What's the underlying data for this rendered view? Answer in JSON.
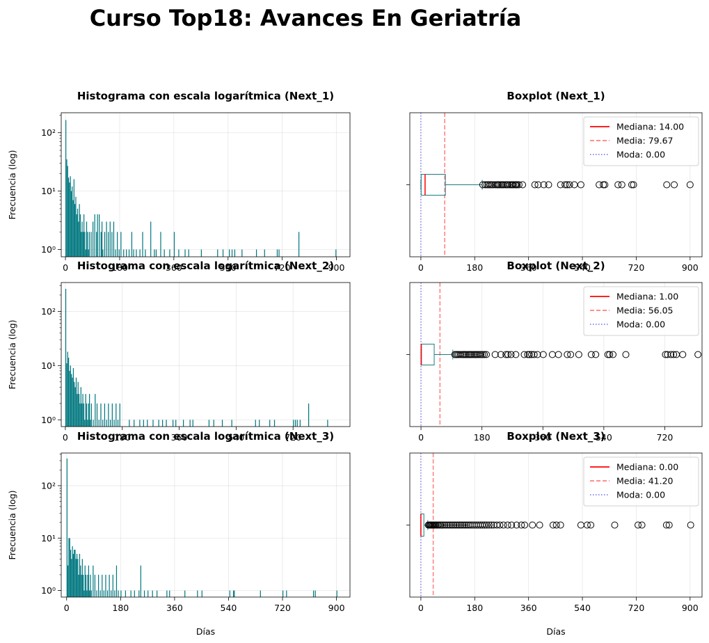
{
  "figure": {
    "title": "Curso Top18: Avances En Geriatría"
  },
  "chart_data": [
    {
      "type": "bar",
      "title": "Histograma con escala logarítmica (Next_1)",
      "xlabel": "",
      "ylabel": "Frecuencia (log)",
      "xlim": [
        -14,
        945
      ],
      "yscale": "log",
      "ylim": [
        0.75,
        220
      ],
      "x_ticks": [
        0,
        180,
        360,
        540,
        720,
        900
      ],
      "y_ticks": [
        {
          "value": 1,
          "label": "10⁰"
        },
        {
          "value": 10,
          "label": "10¹"
        },
        {
          "value": 100,
          "label": "10²"
        }
      ],
      "grid": true,
      "color": "#00777f",
      "bar_width": 2.8,
      "bins": [
        [
          0,
          165
        ],
        [
          3,
          35
        ],
        [
          6,
          27
        ],
        [
          9,
          17
        ],
        [
          12,
          14
        ],
        [
          15,
          18
        ],
        [
          18,
          10
        ],
        [
          21,
          12
        ],
        [
          24,
          7
        ],
        [
          27,
          16
        ],
        [
          30,
          6
        ],
        [
          33,
          8
        ],
        [
          36,
          4
        ],
        [
          39,
          5
        ],
        [
          42,
          3
        ],
        [
          45,
          6
        ],
        [
          48,
          4
        ],
        [
          51,
          2
        ],
        [
          54,
          3
        ],
        [
          57,
          2
        ],
        [
          60,
          4
        ],
        [
          63,
          2
        ],
        [
          66,
          1
        ],
        [
          69,
          3
        ],
        [
          72,
          2
        ],
        [
          75,
          1
        ],
        [
          78,
          2
        ],
        [
          84,
          2
        ],
        [
          90,
          3
        ],
        [
          96,
          4
        ],
        [
          102,
          2
        ],
        [
          105,
          4
        ],
        [
          111,
          4
        ],
        [
          117,
          2
        ],
        [
          120,
          3
        ],
        [
          123,
          1
        ],
        [
          129,
          2
        ],
        [
          135,
          3
        ],
        [
          141,
          2
        ],
        [
          147,
          3
        ],
        [
          153,
          2
        ],
        [
          159,
          3
        ],
        [
          165,
          1
        ],
        [
          171,
          2
        ],
        [
          177,
          1
        ],
        [
          183,
          2
        ],
        [
          192,
          1
        ],
        [
          201,
          1
        ],
        [
          210,
          1
        ],
        [
          219,
          2
        ],
        [
          225,
          1
        ],
        [
          234,
          1
        ],
        [
          246,
          1
        ],
        [
          255,
          2
        ],
        [
          264,
          1
        ],
        [
          282,
          3
        ],
        [
          294,
          1
        ],
        [
          300,
          1
        ],
        [
          315,
          2
        ],
        [
          327,
          1
        ],
        [
          345,
          1
        ],
        [
          360,
          2
        ],
        [
          375,
          1
        ],
        [
          396,
          1
        ],
        [
          408,
          1
        ],
        [
          450,
          1
        ],
        [
          504,
          1
        ],
        [
          522,
          1
        ],
        [
          543,
          1
        ],
        [
          552,
          1
        ],
        [
          561,
          1
        ],
        [
          585,
          1
        ],
        [
          633,
          1
        ],
        [
          660,
          1
        ],
        [
          702,
          1
        ],
        [
          708,
          1
        ],
        [
          774,
          2
        ],
        [
          897,
          1
        ]
      ]
    },
    {
      "type": "boxplot",
      "title": "Boxplot (Next_1)",
      "xlabel": "",
      "xlim": [
        -37,
        940
      ],
      "x_ticks": [
        0,
        180,
        360,
        540,
        720,
        900
      ],
      "grid": true,
      "box": {
        "q1": 1,
        "median": 14,
        "q3": 82,
        "whisker_low": 0,
        "whisker_high": 205
      },
      "mean": 79.67,
      "mode": 0,
      "outliers": [
        207,
        215,
        221,
        226,
        231,
        236,
        241,
        248,
        254,
        258,
        262,
        268,
        272,
        276,
        282,
        287,
        291,
        297,
        302,
        306,
        309,
        315,
        318,
        322,
        328,
        340,
        381,
        392,
        411,
        427,
        467,
        482,
        489,
        497,
        513,
        535,
        596,
        610,
        615,
        659,
        672,
        705,
        711,
        822,
        847,
        900
      ],
      "legend": {
        "position": "upper-right",
        "entries": [
          {
            "label": "Mediana: 14.00",
            "color": "#ff0000",
            "style": "solid"
          },
          {
            "label": "Media: 79.67",
            "color": "#ff7f7f",
            "style": "dashed"
          },
          {
            "label": "Moda: 0.00",
            "color": "#7f7fef",
            "style": "dotted"
          }
        ]
      }
    },
    {
      "type": "bar",
      "title": "Histograma con escala logarítmica (Next_2)",
      "xlabel": "",
      "ylabel": "Frecuencia (log)",
      "xlim": [
        -13,
        900
      ],
      "yscale": "log",
      "ylim": [
        0.75,
        340
      ],
      "x_ticks": [
        0,
        180,
        360,
        540,
        720
      ],
      "y_ticks": [
        {
          "value": 1,
          "label": "10⁰"
        },
        {
          "value": 10,
          "label": "10¹"
        },
        {
          "value": 100,
          "label": "10²"
        }
      ],
      "grid": true,
      "color": "#00777f",
      "bar_width": 2.7,
      "bins": [
        [
          0,
          260
        ],
        [
          3,
          11
        ],
        [
          6,
          18
        ],
        [
          9,
          14
        ],
        [
          12,
          8
        ],
        [
          15,
          10
        ],
        [
          18,
          7
        ],
        [
          21,
          6
        ],
        [
          24,
          9
        ],
        [
          27,
          5
        ],
        [
          30,
          4
        ],
        [
          33,
          6
        ],
        [
          36,
          3
        ],
        [
          39,
          5
        ],
        [
          42,
          3
        ],
        [
          45,
          2
        ],
        [
          48,
          4
        ],
        [
          51,
          2
        ],
        [
          54,
          3
        ],
        [
          57,
          2
        ],
        [
          60,
          1
        ],
        [
          63,
          3
        ],
        [
          66,
          2
        ],
        [
          69,
          1
        ],
        [
          72,
          2
        ],
        [
          75,
          3
        ],
        [
          78,
          1
        ],
        [
          81,
          2
        ],
        [
          87,
          1
        ],
        [
          93,
          3
        ],
        [
          99,
          2
        ],
        [
          105,
          1
        ],
        [
          111,
          2
        ],
        [
          117,
          1
        ],
        [
          123,
          2
        ],
        [
          129,
          1
        ],
        [
          135,
          2
        ],
        [
          141,
          1
        ],
        [
          147,
          2
        ],
        [
          153,
          1
        ],
        [
          159,
          2
        ],
        [
          165,
          1
        ],
        [
          171,
          2
        ],
        [
          201,
          1
        ],
        [
          216,
          1
        ],
        [
          234,
          1
        ],
        [
          246,
          1
        ],
        [
          258,
          1
        ],
        [
          276,
          1
        ],
        [
          294,
          1
        ],
        [
          306,
          1
        ],
        [
          318,
          1
        ],
        [
          339,
          1
        ],
        [
          348,
          1
        ],
        [
          372,
          1
        ],
        [
          393,
          1
        ],
        [
          402,
          1
        ],
        [
          453,
          1
        ],
        [
          468,
          1
        ],
        [
          495,
          1
        ],
        [
          525,
          1
        ],
        [
          600,
          1
        ],
        [
          612,
          1
        ],
        [
          645,
          1
        ],
        [
          660,
          1
        ],
        [
          720,
          1
        ],
        [
          726,
          1
        ],
        [
          732,
          1
        ],
        [
          741,
          1
        ],
        [
          768,
          2
        ],
        [
          828,
          1
        ]
      ]
    },
    {
      "type": "boxplot",
      "title": "Boxplot (Next_2)",
      "xlabel": "",
      "xlim": [
        -33,
        830
      ],
      "x_ticks": [
        0,
        180,
        360,
        540,
        720
      ],
      "grid": true,
      "box": {
        "q1": 0,
        "median": 1,
        "q3": 39,
        "whisker_low": 0,
        "whisker_high": 94
      },
      "mean": 56.05,
      "mode": 0,
      "outliers": [
        100,
        104,
        108,
        112,
        117,
        122,
        126,
        130,
        134,
        139,
        143,
        147,
        151,
        156,
        160,
        164,
        168,
        173,
        177,
        182,
        187,
        193,
        219,
        236,
        251,
        257,
        266,
        280,
        305,
        315,
        320,
        327,
        334,
        344,
        361,
        388,
        406,
        432,
        442,
        466,
        503,
        516,
        552,
        557,
        567,
        605,
        722,
        728,
        738,
        746,
        754,
        773,
        818
      ]
    },
    {
      "type": "bar",
      "title": "Histograma con escala logarítmica (Next_3)",
      "xlabel": "Días",
      "ylabel": "Frecuencia (log)",
      "xlim": [
        -18,
        945
      ],
      "yscale": "log",
      "ylim": [
        0.75,
        420
      ],
      "x_ticks": [
        0,
        180,
        360,
        540,
        720,
        900
      ],
      "y_ticks": [
        {
          "value": 1,
          "label": "10⁰"
        },
        {
          "value": 10,
          "label": "10¹"
        },
        {
          "value": 100,
          "label": "10²"
        }
      ],
      "grid": true,
      "color": "#00777f",
      "bar_width": 2.8,
      "bins": [
        [
          0,
          330
        ],
        [
          3,
          3
        ],
        [
          6,
          10
        ],
        [
          9,
          10
        ],
        [
          12,
          6
        ],
        [
          15,
          4
        ],
        [
          18,
          7
        ],
        [
          21,
          5
        ],
        [
          24,
          6
        ],
        [
          27,
          6
        ],
        [
          30,
          4
        ],
        [
          33,
          5
        ],
        [
          36,
          4
        ],
        [
          39,
          2
        ],
        [
          42,
          5
        ],
        [
          45,
          3
        ],
        [
          48,
          2
        ],
        [
          51,
          4
        ],
        [
          54,
          2
        ],
        [
          57,
          1
        ],
        [
          60,
          3
        ],
        [
          63,
          2
        ],
        [
          66,
          1
        ],
        [
          69,
          2
        ],
        [
          72,
          3
        ],
        [
          75,
          1
        ],
        [
          78,
          2
        ],
        [
          81,
          1
        ],
        [
          87,
          3
        ],
        [
          93,
          2
        ],
        [
          99,
          1
        ],
        [
          105,
          2
        ],
        [
          111,
          1
        ],
        [
          117,
          2
        ],
        [
          123,
          1
        ],
        [
          129,
          2
        ],
        [
          135,
          1
        ],
        [
          141,
          2
        ],
        [
          147,
          1
        ],
        [
          153,
          2
        ],
        [
          159,
          1
        ],
        [
          165,
          3
        ],
        [
          171,
          1
        ],
        [
          180,
          1
        ],
        [
          195,
          1
        ],
        [
          213,
          1
        ],
        [
          225,
          1
        ],
        [
          240,
          1
        ],
        [
          246,
          3
        ],
        [
          258,
          1
        ],
        [
          270,
          1
        ],
        [
          285,
          1
        ],
        [
          300,
          1
        ],
        [
          333,
          1
        ],
        [
          342,
          1
        ],
        [
          393,
          1
        ],
        [
          435,
          1
        ],
        [
          450,
          1
        ],
        [
          543,
          1
        ],
        [
          555,
          1
        ],
        [
          558,
          1
        ],
        [
          645,
          1
        ],
        [
          720,
          1
        ],
        [
          732,
          1
        ],
        [
          822,
          1
        ],
        [
          828,
          1
        ],
        [
          900,
          1
        ]
      ]
    },
    {
      "type": "boxplot",
      "title": "Boxplot (Next_3)",
      "xlabel": "Días",
      "xlim": [
        -37,
        940
      ],
      "x_ticks": [
        0,
        180,
        360,
        540,
        720,
        900
      ],
      "grid": true,
      "box": {
        "q1": 0,
        "median": 0,
        "q3": 10,
        "whisker_low": 0,
        "whisker_high": 23
      },
      "mean": 41.2,
      "mode": 0,
      "outliers": [
        25,
        28,
        31,
        34,
        37,
        40,
        43,
        46,
        50,
        54,
        58,
        63,
        68,
        74,
        80,
        86,
        92,
        98,
        104,
        110,
        116,
        122,
        128,
        134,
        140,
        146,
        152,
        158,
        164,
        171,
        178,
        185,
        192,
        199,
        206,
        213,
        220,
        228,
        236,
        244,
        254,
        264,
        276,
        290,
        303,
        320,
        336,
        347,
        373,
        397,
        442,
        453,
        467,
        535,
        556,
        568,
        648,
        726,
        739,
        821,
        830,
        902
      ],
      "legend": {
        "position": "upper-right",
        "entries": [
          {
            "label": "Mediana: 0.00",
            "color": "#ff0000",
            "style": "solid"
          },
          {
            "label": "Media: 41.20",
            "color": "#ff7f7f",
            "style": "dashed"
          },
          {
            "label": "Moda: 0.00",
            "color": "#7f7fef",
            "style": "dotted"
          }
        ]
      }
    }
  ],
  "legend_next2": {
    "entries": [
      {
        "label": "Mediana: 1.00",
        "color": "#ff0000",
        "style": "solid"
      },
      {
        "label": "Media: 56.05",
        "color": "#ff7f7f",
        "style": "dashed"
      },
      {
        "label": "Moda: 0.00",
        "color": "#7f7fef",
        "style": "dotted"
      }
    ]
  }
}
